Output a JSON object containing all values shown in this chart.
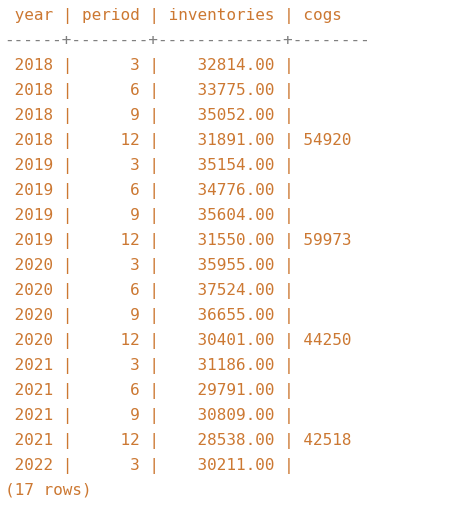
{
  "bg_color": "#ffffff",
  "text_color_main": "#cc7832",
  "text_color_pipe": "#6897bb",
  "text_color_dashes": "#808080",
  "font_family": "monospace",
  "font_size": 11.5,
  "dpi": 100,
  "fig_width": 4.51,
  "fig_height": 5.18,
  "header": " year | period | inventories | cogs",
  "separator": "------+--------+-------------+--------",
  "rows": [
    " 2018 |      3 |    32814.00 |",
    " 2018 |      6 |    33775.00 |",
    " 2018 |      9 |    35052.00 |",
    " 2018 |     12 |    31891.00 | 54920",
    " 2019 |      3 |    35154.00 |",
    " 2019 |      6 |    34776.00 |",
    " 2019 |      9 |    35604.00 |",
    " 2019 |     12 |    31550.00 | 59973",
    " 2020 |      3 |    35955.00 |",
    " 2020 |      6 |    37524.00 |",
    " 2020 |      9 |    36655.00 |",
    " 2020 |     12 |    30401.00 | 44250",
    " 2021 |      3 |    31186.00 |",
    " 2021 |      6 |    29791.00 |",
    " 2021 |      9 |    30809.00 |",
    " 2021 |     12 |    28538.00 | 42518",
    " 2022 |      3 |    30211.00 |"
  ],
  "footer": "(17 rows)"
}
